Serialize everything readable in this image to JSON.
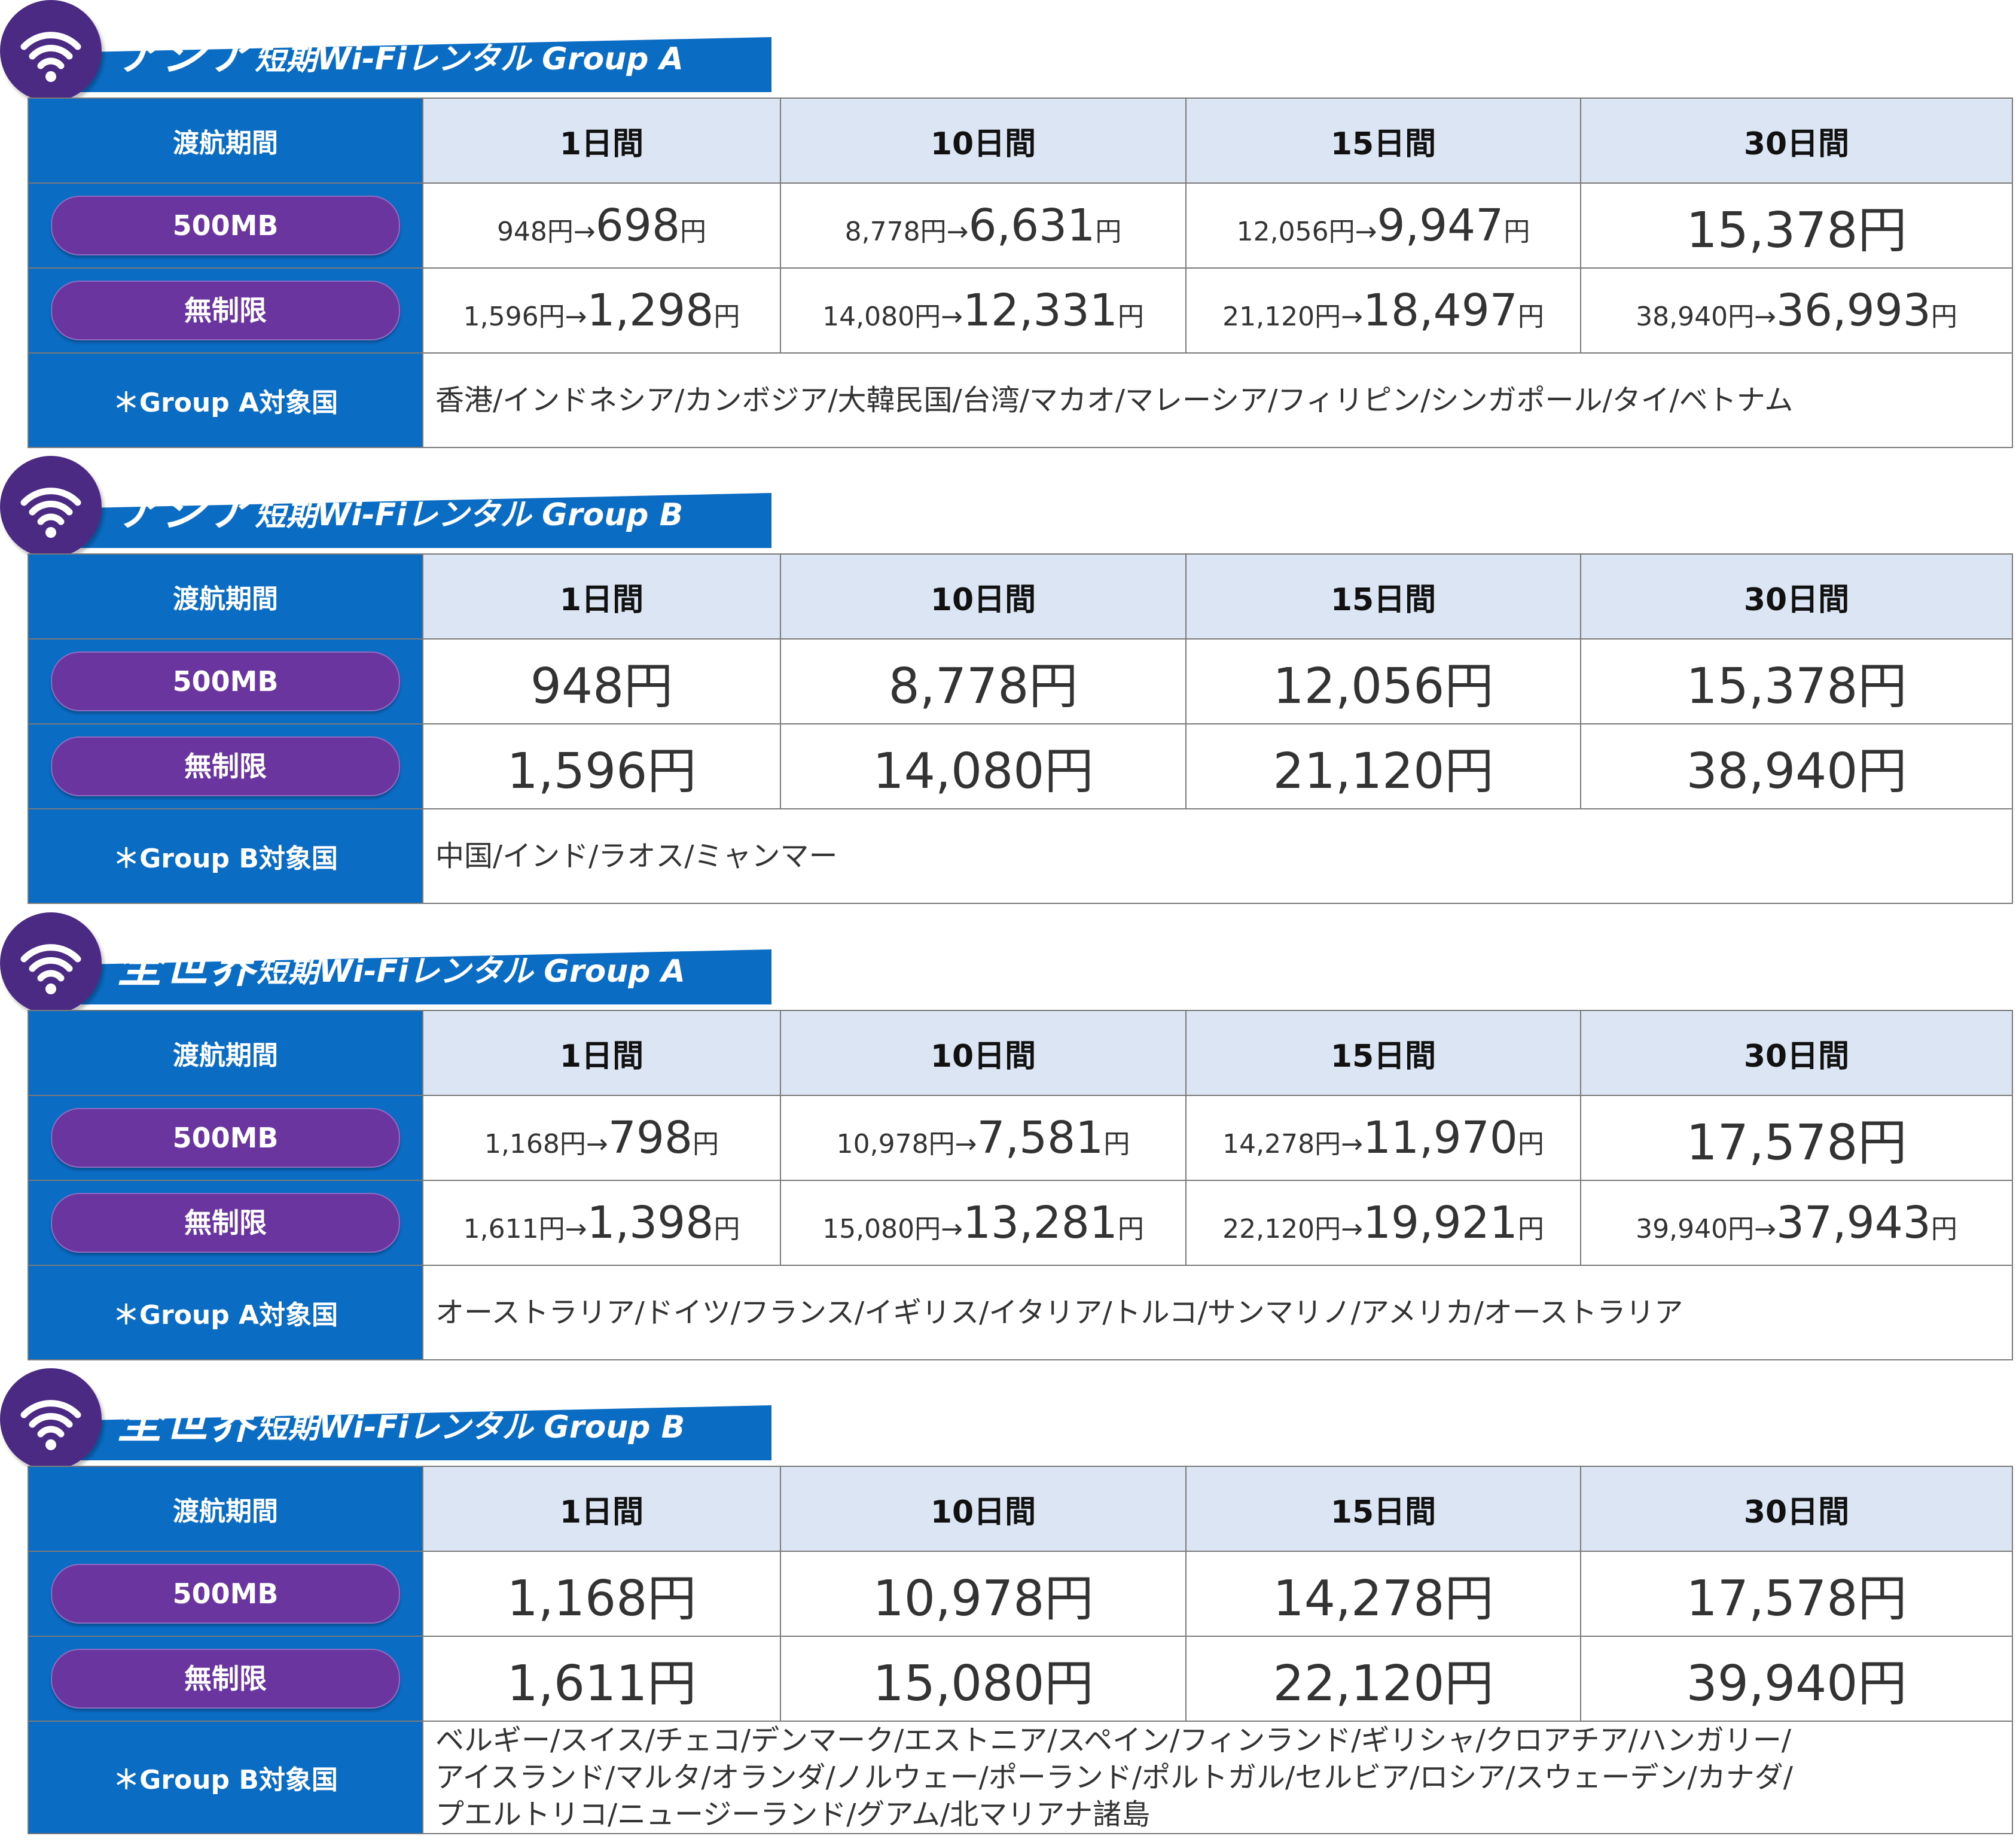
{
  "colors": {
    "banner": "#0b6cc4",
    "label_bg": "#0b6cc4",
    "header_bg": "#dbe5f4",
    "pill": "#6b35a0",
    "wifi_circle": "#4b2a84"
  },
  "icons": {
    "wifi": "wifi-icon"
  },
  "sections": [
    {
      "title_big": "アジア",
      "title_small": "短期Wi-Fiレンタル Group A",
      "period_label": "渡航期間",
      "periods": [
        "1日間",
        "10日間",
        "15日間",
        "30日間"
      ],
      "plans": [
        {
          "name": "500MB",
          "prices": [
            {
              "orig": "948円→",
              "sale": "698",
              "unit": "円"
            },
            {
              "orig": "8,778円→",
              "sale": "6,631",
              "unit": "円"
            },
            {
              "orig": "12,056円→",
              "sale": "9,947",
              "unit": "円"
            },
            {
              "orig": "",
              "sale": "15,378円",
              "unit": ""
            }
          ]
        },
        {
          "name": "無制限",
          "prices": [
            {
              "orig": "1,596円→",
              "sale": "1,298",
              "unit": "円"
            },
            {
              "orig": "14,080円→",
              "sale": "12,331",
              "unit": "円"
            },
            {
              "orig": "21,120円→",
              "sale": "18,497",
              "unit": "円"
            },
            {
              "orig": "38,940円→",
              "sale": "36,993",
              "unit": "円"
            }
          ]
        }
      ],
      "countries_label": "＊Group A対象国",
      "countries": [
        "香港/インドネシア/カンボジア/大韓民国/台湾/マカオ/マレーシア/フィリピン/シンガポール/タイ/ベトナム"
      ]
    },
    {
      "title_big": "アジア",
      "title_small": "短期Wi-Fiレンタル Group B",
      "period_label": "渡航期間",
      "periods": [
        "1日間",
        "10日間",
        "15日間",
        "30日間"
      ],
      "plans": [
        {
          "name": "500MB",
          "prices": [
            {
              "orig": "",
              "sale": "948円",
              "unit": ""
            },
            {
              "orig": "",
              "sale": "8,778円",
              "unit": ""
            },
            {
              "orig": "",
              "sale": "12,056円",
              "unit": ""
            },
            {
              "orig": "",
              "sale": "15,378円",
              "unit": ""
            }
          ]
        },
        {
          "name": "無制限",
          "prices": [
            {
              "orig": "",
              "sale": "1,596円",
              "unit": ""
            },
            {
              "orig": "",
              "sale": "14,080円",
              "unit": ""
            },
            {
              "orig": "",
              "sale": "21,120円",
              "unit": ""
            },
            {
              "orig": "",
              "sale": "38,940円",
              "unit": ""
            }
          ]
        }
      ],
      "countries_label": "＊Group B対象国",
      "countries": [
        "中国/インド/ラオス/ミャンマー"
      ]
    },
    {
      "title_big": "全世界",
      "title_small": "短期Wi-Fiレンタル Group A",
      "period_label": "渡航期間",
      "periods": [
        "1日間",
        "10日間",
        "15日間",
        "30日間"
      ],
      "plans": [
        {
          "name": "500MB",
          "prices": [
            {
              "orig": "1,168円→",
              "sale": "798",
              "unit": "円"
            },
            {
              "orig": "10,978円→",
              "sale": "7,581",
              "unit": "円"
            },
            {
              "orig": "14,278円→",
              "sale": "11,970",
              "unit": "円"
            },
            {
              "orig": "",
              "sale": "17,578円",
              "unit": ""
            }
          ]
        },
        {
          "name": "無制限",
          "prices": [
            {
              "orig": "1,611円→",
              "sale": "1,398",
              "unit": "円"
            },
            {
              "orig": "15,080円→",
              "sale": "13,281",
              "unit": "円"
            },
            {
              "orig": "22,120円→",
              "sale": "19,921",
              "unit": "円"
            },
            {
              "orig": "39,940円→",
              "sale": "37,943",
              "unit": "円"
            }
          ]
        }
      ],
      "countries_label": "＊Group A対象国",
      "countries": [
        "オーストラリア/ドイツ/フランス/イギリス/イタリア/トルコ/サンマリノ/アメリカ/オーストラリア"
      ]
    },
    {
      "title_big": "全世界",
      "title_small": "短期Wi-Fiレンタル Group B",
      "period_label": "渡航期間",
      "periods": [
        "1日間",
        "10日間",
        "15日間",
        "30日間"
      ],
      "plans": [
        {
          "name": "500MB",
          "prices": [
            {
              "orig": "",
              "sale": "1,168円",
              "unit": ""
            },
            {
              "orig": "",
              "sale": "10,978円",
              "unit": ""
            },
            {
              "orig": "",
              "sale": "14,278円",
              "unit": ""
            },
            {
              "orig": "",
              "sale": "17,578円",
              "unit": ""
            }
          ]
        },
        {
          "name": "無制限",
          "prices": [
            {
              "orig": "",
              "sale": "1,611円",
              "unit": ""
            },
            {
              "orig": "",
              "sale": "15,080円",
              "unit": ""
            },
            {
              "orig": "",
              "sale": "22,120円",
              "unit": ""
            },
            {
              "orig": "",
              "sale": "39,940円",
              "unit": ""
            }
          ]
        }
      ],
      "countries_label": "＊Group B対象国",
      "countries": [
        "ベルギー/スイス/チェコ/デンマーク/エストニア/スペイン/フィンランド/ギリシャ/クロアチア/ハンガリー/",
        "アイスランド/マルタ/オランダ/ノルウェー/ポーランド/ポルトガル/セルビア/ロシア/スウェーデン/カナダ/",
        "プエルトリコ/ニュージーランド/グアム/北マリアナ諸島"
      ]
    }
  ]
}
